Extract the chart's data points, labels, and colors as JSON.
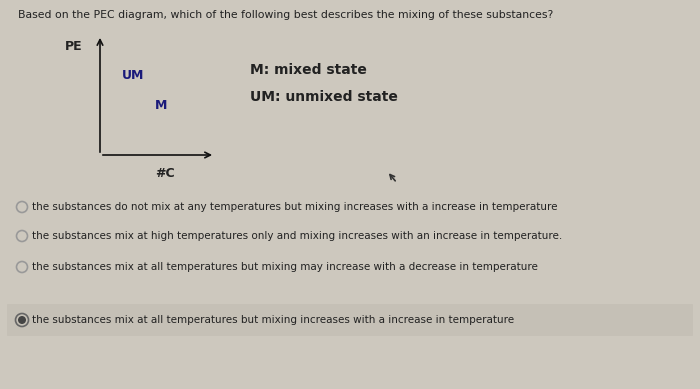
{
  "title": "Based on the PEC diagram, which of the following best describes the mixing of these substances?",
  "title_fontsize": 7.8,
  "background_color": "#cdc8be",
  "diagram": {
    "pe_label": "PE",
    "x_label": "#C",
    "um_label": "UM",
    "m_label": "M",
    "legend_m": "M: mixed state",
    "legend_um": "UM: unmixed state",
    "um_color": "#1a1a7a",
    "m_color": "#1a1a7a"
  },
  "options": [
    {
      "text": "the substances do not mix at any temperatures but mixing increases with a increase in temperature",
      "selected": false
    },
    {
      "text": "the substances mix at high temperatures only and mixing increases with an increase in temperature.",
      "selected": false
    },
    {
      "text": "the substances mix at all temperatures but mixing may increase with a decrease in temperature",
      "selected": false
    },
    {
      "text": "the substances mix at all temperatures but mixing increases with a increase in temperature",
      "selected": true
    }
  ],
  "option_fontsize": 7.5,
  "option_bg_selected": "#c5c0b6",
  "option_bg_unselected": "#cdc8be",
  "text_color": "#222222",
  "circle_unselected_color": "#999999",
  "circle_selected_outer": "#666666",
  "circle_selected_inner": "#444444"
}
